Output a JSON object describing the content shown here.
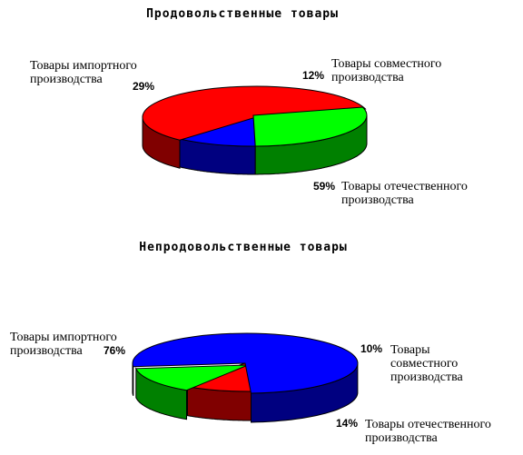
{
  "chart_data": [
    {
      "type": "pie",
      "title": "Продовольственные товары",
      "categories": [
        "Товары совместного производства",
        "Товары отечественного производства",
        "Товары импортного производства"
      ],
      "values": [
        12,
        59,
        29
      ],
      "value_labels": [
        "12%",
        "59%",
        "29%"
      ],
      "label_lines": [
        [
          "Товары совместного",
          "производства"
        ],
        [
          "Товары отечественного",
          "производства"
        ],
        [
          "Товары импортного",
          "производства"
        ]
      ],
      "colors": [
        "#0000ff",
        "#ff0000",
        "#00ff00"
      ],
      "side_colors": [
        "#000080",
        "#800000",
        "#008000"
      ],
      "start_angle": 271
    },
    {
      "type": "pie",
      "title": "Непродовольственные товары",
      "categories": [
        "Товары совместного производства",
        "Товары отечественного производства",
        "Товары импортного производства"
      ],
      "values": [
        10,
        14,
        76
      ],
      "value_labels": [
        "10%",
        "14%",
        "76%"
      ],
      "label_lines": [
        [
          "Товары",
          "совместного",
          "производства"
        ],
        [
          "Товары отечественного",
          "производства"
        ],
        [
          "Товары импортного",
          "производства"
        ]
      ],
      "colors": [
        "#ff0000",
        "#00ff00",
        "#0000ff"
      ],
      "side_colors": [
        "#800000",
        "#008000",
        "#000080"
      ],
      "start_angle": 273
    }
  ]
}
